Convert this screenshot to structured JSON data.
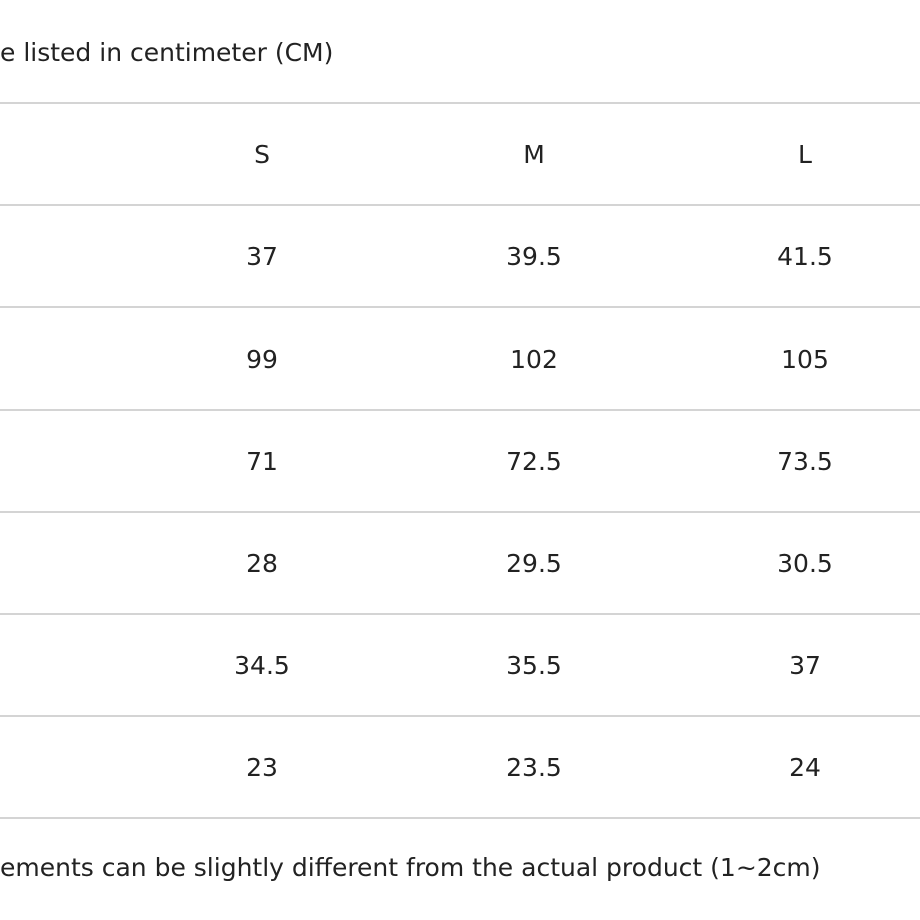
{
  "header": {
    "note": "e listed in centimeter (CM)"
  },
  "table": {
    "columns": [
      "S",
      "M",
      "L"
    ],
    "rows": [
      [
        "37",
        "39.5",
        "41.5"
      ],
      [
        "99",
        "102",
        "105"
      ],
      [
        "71",
        "72.5",
        "73.5"
      ],
      [
        "28",
        "29.5",
        "30.5"
      ],
      [
        "34.5",
        "35.5",
        "37"
      ],
      [
        "23",
        "23.5",
        "24"
      ]
    ]
  },
  "footer": {
    "note": "ements can be slightly different from the actual product (1~2cm)"
  }
}
